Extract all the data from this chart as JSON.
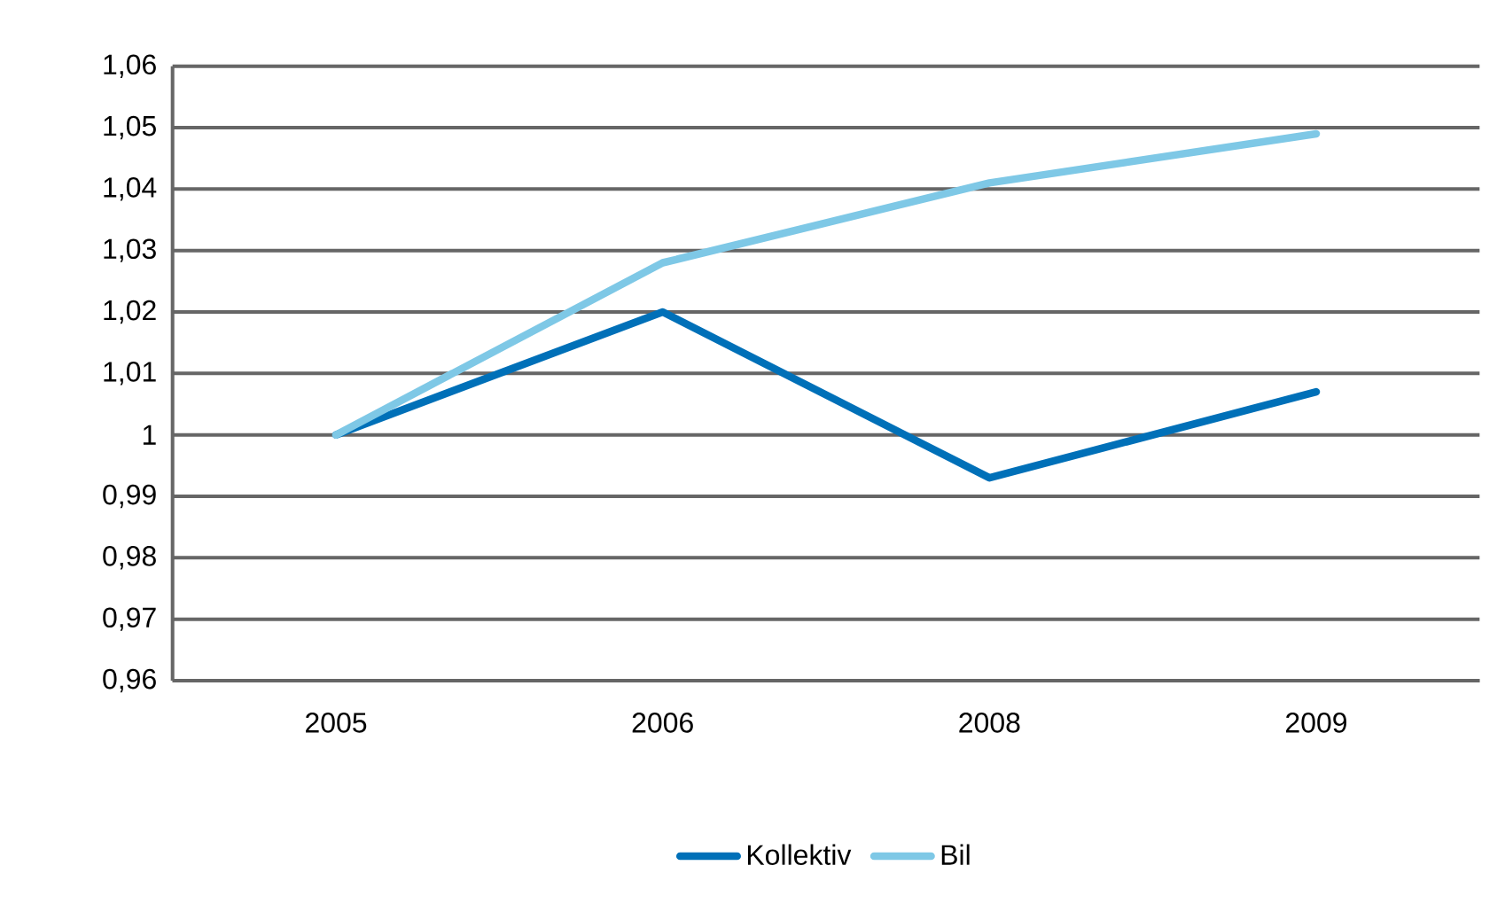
{
  "chart_data": {
    "type": "line",
    "categories": [
      "2005",
      "2006",
      "2008",
      "2009"
    ],
    "series": [
      {
        "name": "Kollektiv",
        "color": "#0070b8",
        "values": [
          1.0,
          1.02,
          0.993,
          1.007
        ]
      },
      {
        "name": "Bil",
        "color": "#7ec8e6",
        "values": [
          1.0,
          1.028,
          1.041,
          1.049
        ]
      }
    ],
    "ylim": [
      0.96,
      1.06
    ],
    "yticks": [
      {
        "value": 0.96,
        "label": "0,96"
      },
      {
        "value": 0.97,
        "label": "0,97"
      },
      {
        "value": 0.98,
        "label": "0,98"
      },
      {
        "value": 0.99,
        "label": "0,99"
      },
      {
        "value": 1,
        "label": "1"
      },
      {
        "value": 1.01,
        "label": "1,01"
      },
      {
        "value": 1.02,
        "label": "1,02"
      },
      {
        "value": 1.03,
        "label": "1,03"
      },
      {
        "value": 1.04,
        "label": "1,04"
      },
      {
        "value": 1.05,
        "label": "1,05"
      },
      {
        "value": 1.06,
        "label": "1,06"
      }
    ],
    "grid": "y",
    "legend": "bottom",
    "marker": "none",
    "line_style": "solid"
  }
}
